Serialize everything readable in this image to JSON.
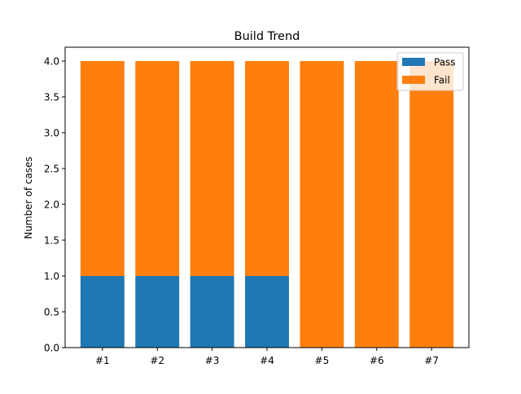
{
  "chart_data": {
    "type": "bar",
    "stacked": true,
    "title": "Build Trend",
    "xlabel": "",
    "ylabel": "Number of cases",
    "categories": [
      "#1",
      "#2",
      "#3",
      "#4",
      "#5",
      "#6",
      "#7"
    ],
    "series": [
      {
        "name": "Pass",
        "color": "#1f77b4",
        "values": [
          1,
          1,
          1,
          1,
          0,
          0,
          0
        ]
      },
      {
        "name": "Fail",
        "color": "#ff7f0e",
        "values": [
          3,
          3,
          3,
          3,
          4,
          4,
          4
        ]
      }
    ],
    "ylim": [
      0,
      4.0
    ],
    "yticks": [
      "0.0",
      "0.5",
      "1.0",
      "1.5",
      "2.0",
      "2.5",
      "3.0",
      "3.5",
      "4.0"
    ],
    "grid": false,
    "legend_position": "top-right"
  }
}
